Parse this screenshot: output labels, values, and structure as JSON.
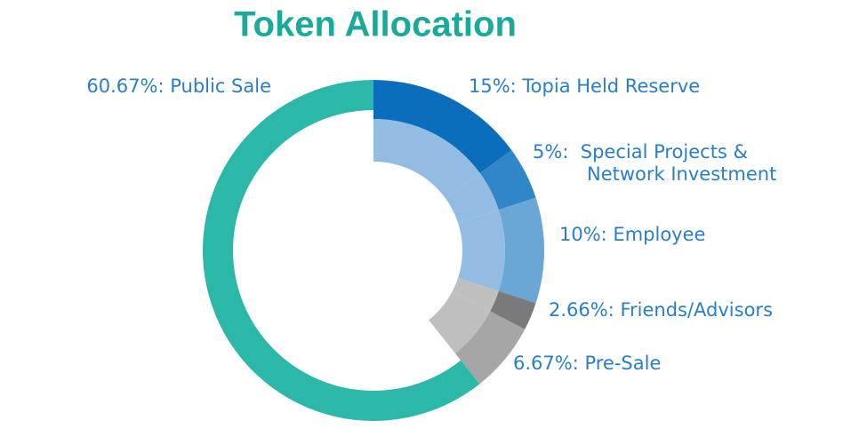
{
  "chart_data": {
    "type": "donut",
    "title": "Token Allocation",
    "labels": [
      [
        "15%: Topia Held Reserve"
      ],
      [
        "5%:  Special Projects &",
        "Network Investment"
      ],
      [
        "10%: Employee"
      ],
      [
        "2.66%: Friends/Advisors"
      ],
      [
        "6.67%: Pre-Sale"
      ],
      [
        "60.67%: Public Sale"
      ]
    ],
    "values": [
      15,
      5,
      10,
      2.66,
      6.67,
      60.67
    ],
    "colors": [
      "#0a6ebd",
      "#2f86c9",
      "#6aa6d6",
      "#7a7a7a",
      "#a6a6a6",
      "#2bb8a8"
    ],
    "inner_colors": [
      "#93bce2",
      "#93bce2",
      "#93bce2",
      "#bfbfbf",
      "#bfbfbf",
      null
    ]
  }
}
